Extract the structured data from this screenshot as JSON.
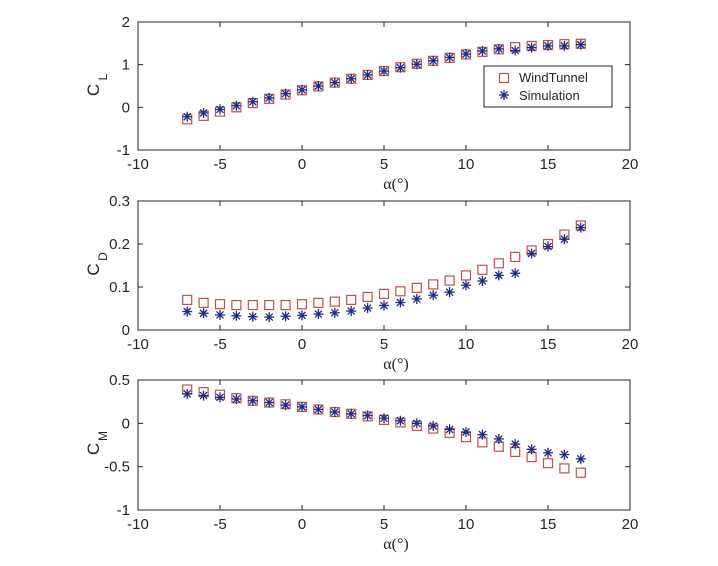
{
  "colors": {
    "windtunnel": "#c0504d",
    "simulation": "#1f2a8a",
    "axis": "#262626",
    "background": "#ffffff"
  },
  "legend": {
    "windtunnel_label": "WindTunnel",
    "simulation_label": "Simulation",
    "position": "right, upper-middle of top panel"
  },
  "chart_data": [
    {
      "type": "scatter",
      "ylabel": "C",
      "ylabel_subscript": "L",
      "xlabel": "α(°)",
      "xlim": [
        -10,
        20
      ],
      "ylim": [
        -1,
        2
      ],
      "xticks": [
        -10,
        -5,
        0,
        5,
        10,
        15,
        20
      ],
      "yticks": [
        -1,
        0,
        1,
        2
      ],
      "xtick_labels": [
        "-10",
        "-5",
        "0",
        "5",
        "10",
        "15",
        "20"
      ],
      "ytick_labels": [
        "-1",
        "0",
        "1",
        "2"
      ],
      "legend": true,
      "series": [
        {
          "name": "WindTunnel",
          "marker": "square",
          "x": [
            -7,
            -6,
            -5,
            -4,
            -3,
            -2,
            -1,
            0,
            1,
            2,
            3,
            4,
            5,
            6,
            7,
            8,
            9,
            10,
            11,
            12,
            13,
            14,
            15,
            16,
            17
          ],
          "y": [
            -0.28,
            -0.2,
            -0.1,
            0.0,
            0.1,
            0.2,
            0.3,
            0.4,
            0.49,
            0.58,
            0.67,
            0.76,
            0.85,
            0.94,
            1.02,
            1.09,
            1.16,
            1.24,
            1.3,
            1.36,
            1.41,
            1.44,
            1.46,
            1.48,
            1.49
          ]
        },
        {
          "name": "Simulation",
          "marker": "asterisk",
          "x": [
            -7,
            -6,
            -5,
            -4,
            -3,
            -2,
            -1,
            0,
            1,
            2,
            3,
            4,
            5,
            6,
            7,
            8,
            9,
            10,
            11,
            12,
            13,
            14,
            15,
            16,
            17
          ],
          "y": [
            -0.22,
            -0.13,
            -0.05,
            0.04,
            0.13,
            0.22,
            0.32,
            0.41,
            0.5,
            0.58,
            0.67,
            0.76,
            0.85,
            0.93,
            1.01,
            1.09,
            1.17,
            1.25,
            1.32,
            1.37,
            1.33,
            1.4,
            1.44,
            1.44,
            1.47
          ]
        }
      ]
    },
    {
      "type": "scatter",
      "ylabel": "C",
      "ylabel_subscript": "D",
      "xlabel": "α(°)",
      "xlim": [
        -10,
        20
      ],
      "ylim": [
        0,
        0.3
      ],
      "xticks": [
        -10,
        -5,
        0,
        5,
        10,
        15,
        20
      ],
      "yticks": [
        0,
        0.1,
        0.2,
        0.3
      ],
      "xtick_labels": [
        "-10",
        "-5",
        "0",
        "5",
        "10",
        "15",
        "20"
      ],
      "ytick_labels": [
        "0",
        "0.1",
        "0.2",
        "0.3"
      ],
      "legend": false,
      "series": [
        {
          "name": "WindTunnel",
          "marker": "square",
          "x": [
            -7,
            -6,
            -5,
            -4,
            -3,
            -2,
            -1,
            0,
            1,
            2,
            3,
            4,
            5,
            6,
            7,
            8,
            9,
            10,
            11,
            12,
            13,
            14,
            15,
            16,
            17
          ],
          "y": [
            0.07,
            0.063,
            0.06,
            0.058,
            0.058,
            0.058,
            0.058,
            0.06,
            0.063,
            0.066,
            0.07,
            0.077,
            0.084,
            0.09,
            0.098,
            0.106,
            0.115,
            0.127,
            0.14,
            0.155,
            0.17,
            0.185,
            0.2,
            0.222,
            0.243
          ]
        },
        {
          "name": "Simulation",
          "marker": "asterisk",
          "x": [
            -7,
            -6,
            -5,
            -4,
            -3,
            -2,
            -1,
            0,
            1,
            2,
            3,
            4,
            5,
            6,
            7,
            8,
            9,
            10,
            11,
            12,
            13,
            14,
            15,
            16,
            17
          ],
          "y": [
            0.043,
            0.039,
            0.035,
            0.033,
            0.031,
            0.03,
            0.032,
            0.034,
            0.037,
            0.04,
            0.044,
            0.051,
            0.057,
            0.064,
            0.072,
            0.081,
            0.088,
            0.104,
            0.114,
            0.127,
            0.132,
            0.178,
            0.194,
            0.211,
            0.238
          ]
        }
      ]
    },
    {
      "type": "scatter",
      "ylabel": "C",
      "ylabel_subscript": "M",
      "xlabel": "α(°)",
      "xlim": [
        -10,
        20
      ],
      "ylim": [
        -1,
        0.5
      ],
      "xticks": [
        -10,
        -5,
        0,
        5,
        10,
        15,
        20
      ],
      "yticks": [
        -1,
        -0.5,
        0,
        0.5
      ],
      "xtick_labels": [
        "-10",
        "-5",
        "0",
        "5",
        "10",
        "15",
        "20"
      ],
      "ytick_labels": [
        "-1",
        "-0.5",
        "0",
        "0.5"
      ],
      "legend": false,
      "series": [
        {
          "name": "WindTunnel",
          "marker": "square",
          "x": [
            -7,
            -6,
            -5,
            -4,
            -3,
            -2,
            -1,
            0,
            1,
            2,
            3,
            4,
            5,
            6,
            7,
            8,
            9,
            10,
            11,
            12,
            13,
            14,
            15,
            16,
            17
          ],
          "y": [
            0.39,
            0.36,
            0.33,
            0.29,
            0.26,
            0.24,
            0.22,
            0.19,
            0.16,
            0.13,
            0.11,
            0.08,
            0.04,
            0.01,
            -0.03,
            -0.06,
            -0.11,
            -0.16,
            -0.22,
            -0.27,
            -0.33,
            -0.39,
            -0.46,
            -0.52,
            -0.57
          ]
        },
        {
          "name": "Simulation",
          "marker": "asterisk",
          "x": [
            -7,
            -6,
            -5,
            -4,
            -3,
            -2,
            -1,
            0,
            1,
            2,
            3,
            4,
            5,
            6,
            7,
            8,
            9,
            10,
            11,
            12,
            13,
            14,
            15,
            16,
            17
          ],
          "y": [
            0.34,
            0.32,
            0.3,
            0.28,
            0.26,
            0.24,
            0.21,
            0.19,
            0.16,
            0.13,
            0.11,
            0.09,
            0.06,
            0.03,
            0.0,
            -0.03,
            -0.07,
            -0.1,
            -0.13,
            -0.18,
            -0.24,
            -0.3,
            -0.34,
            -0.36,
            -0.41
          ]
        }
      ]
    }
  ]
}
